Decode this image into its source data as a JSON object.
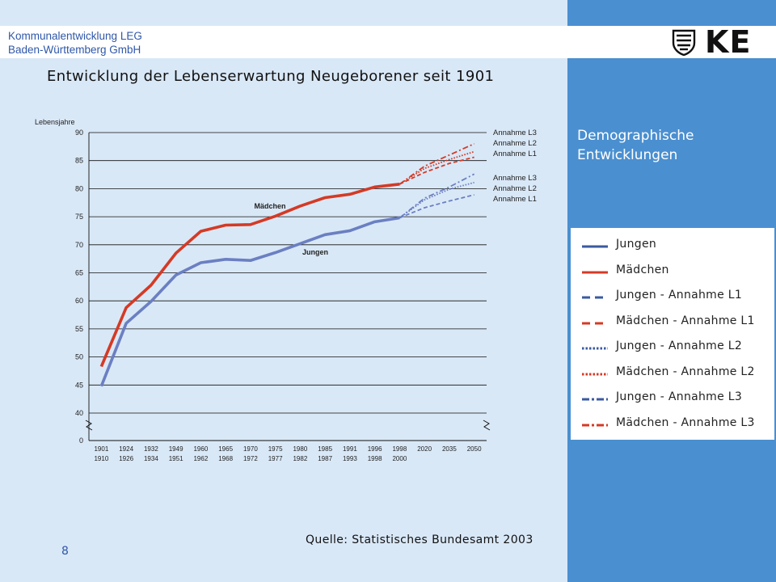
{
  "header": {
    "org_line1": "Kommunalentwicklung LEG",
    "org_line2": "Baden-Württemberg GmbH",
    "logo_text": "KE"
  },
  "title": "Entwicklung der Lebenserwartung Neugeborener seit 1901",
  "topic": {
    "line1": "Demographische",
    "line2": "Entwicklungen"
  },
  "source": "Quelle: Statistisches Bundesamt 2003",
  "page_number": "8",
  "colors": {
    "boys": "#6b7fc2",
    "girls": "#d43a25",
    "panel": "#4a8fd0",
    "slide": "#d9e8f7"
  },
  "legend": [
    {
      "label": "Jungen",
      "color": "#3a5aa0",
      "style": "solid"
    },
    {
      "label": "Mädchen",
      "color": "#d43a25",
      "style": "solid"
    },
    {
      "label": "Jungen - Annahme L1",
      "color": "#3a5aa0",
      "style": "dashed"
    },
    {
      "label": "Mädchen - Annahme L1",
      "color": "#d43a25",
      "style": "dashed"
    },
    {
      "label": "Jungen - Annahme L2",
      "color": "#3a5aa0",
      "style": "dotted"
    },
    {
      "label": "Mädchen - Annahme L2",
      "color": "#d43a25",
      "style": "dotted"
    },
    {
      "label": "Jungen - Annahme L3",
      "color": "#3a5aa0",
      "style": "dashdot"
    },
    {
      "label": "Mädchen - Annahme L3",
      "color": "#d43a25",
      "style": "dashdot"
    }
  ],
  "chart_data": {
    "type": "line",
    "ylabel": "Lebensjahre",
    "ylim": [
      40,
      90
    ],
    "y_ticks": [
      90,
      85,
      80,
      75,
      70,
      65,
      60,
      55,
      50,
      45,
      40
    ],
    "y_zero_label": "0",
    "x_categories": [
      [
        "1901",
        "1910"
      ],
      [
        "1924",
        "1926"
      ],
      [
        "1932",
        "1934"
      ],
      [
        "1949",
        "1951"
      ],
      [
        "1960",
        "1962"
      ],
      [
        "1965",
        "1968"
      ],
      [
        "1970",
        "1972"
      ],
      [
        "1975",
        "1977"
      ],
      [
        "1980",
        "1982"
      ],
      [
        "1985",
        "1987"
      ],
      [
        "1991",
        "1993"
      ],
      [
        "1996",
        "1998"
      ],
      [
        "1998",
        "2000"
      ],
      [
        "2020",
        ""
      ],
      [
        "2035",
        ""
      ],
      [
        "2050",
        ""
      ]
    ],
    "grid": true,
    "series": [
      {
        "name": "Jungen",
        "values": [
          44.8,
          56.0,
          59.9,
          64.6,
          66.8,
          67.4,
          67.2,
          68.6,
          70.2,
          71.8,
          72.5,
          74.1,
          74.8
        ],
        "style": "solid"
      },
      {
        "name": "Mädchen",
        "values": [
          48.3,
          58.8,
          62.8,
          68.5,
          72.4,
          73.5,
          73.6,
          75.1,
          76.9,
          78.4,
          79.0,
          80.3,
          80.8
        ],
        "style": "solid"
      }
    ],
    "projections": [
      {
        "name": "Jungen - Annahme L1",
        "x_index": [
          12,
          13,
          14,
          15
        ],
        "values": [
          74.8,
          76.6,
          77.8,
          78.9
        ],
        "style": "dashed"
      },
      {
        "name": "Jungen - Annahme L2",
        "x_index": [
          12,
          13,
          14,
          15
        ],
        "values": [
          74.8,
          78.0,
          79.9,
          81.1
        ],
        "style": "dotted"
      },
      {
        "name": "Jungen - Annahme L3",
        "x_index": [
          12,
          13,
          14,
          15
        ],
        "values": [
          74.8,
          78.3,
          80.3,
          82.6
        ],
        "style": "dashdot"
      },
      {
        "name": "Mädchen - Annahme L1",
        "x_index": [
          12,
          13,
          14,
          15
        ],
        "values": [
          80.8,
          82.9,
          84.5,
          85.6
        ],
        "style": "dashed"
      },
      {
        "name": "Mädchen - Annahme L2",
        "x_index": [
          12,
          13,
          14,
          15
        ],
        "values": [
          80.8,
          83.6,
          85.2,
          86.6
        ],
        "style": "dotted"
      },
      {
        "name": "Mädchen - Annahme L3",
        "x_index": [
          12,
          13,
          14,
          15
        ],
        "values": [
          80.8,
          84.0,
          86.0,
          88.0
        ],
        "style": "dashdot"
      }
    ],
    "annotations": {
      "girls_label": "Mädchen",
      "boys_label": "Jungen",
      "right_labels_girls": [
        "Annahme L3",
        "Annahme L2",
        "Annahme L1"
      ],
      "right_labels_boys": [
        "Annahme L3",
        "Annahme L2",
        "Annahme L1"
      ]
    }
  }
}
